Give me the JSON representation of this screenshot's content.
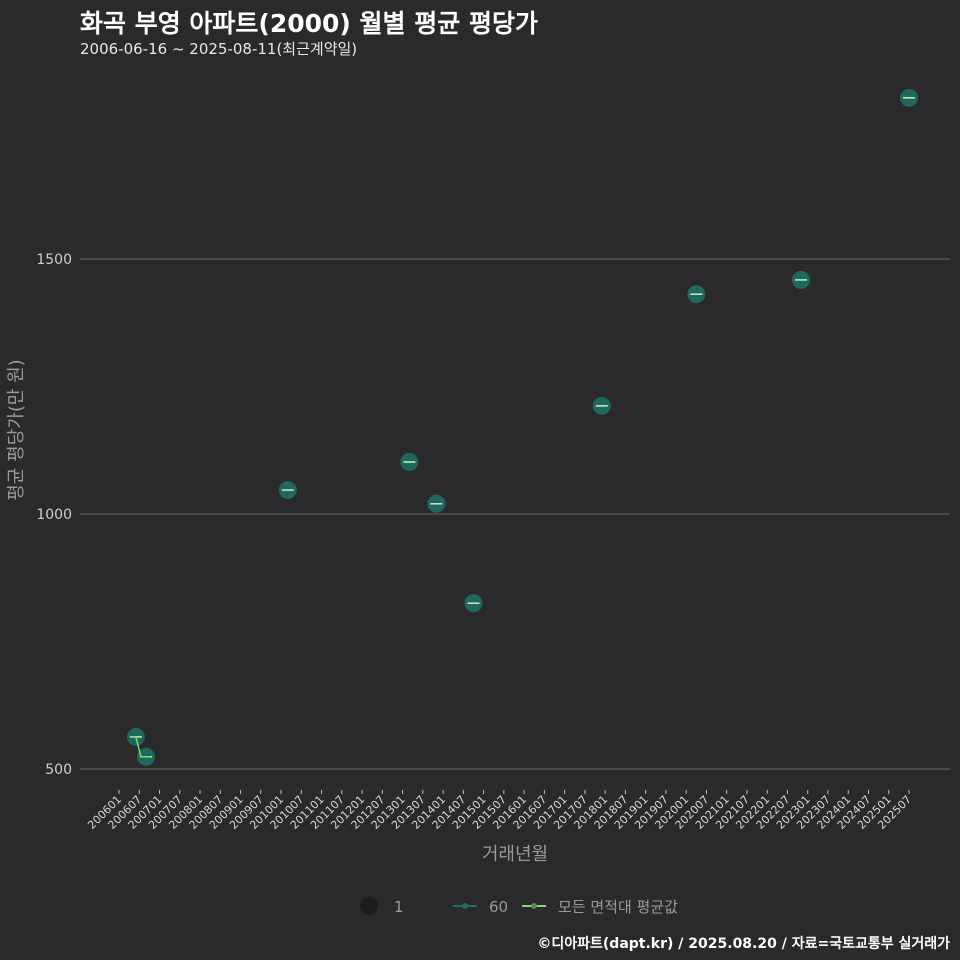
{
  "chart_data": {
    "type": "scatter",
    "title": "화곡 부영 아파트(2000) 월별 평균 평당가",
    "subtitle": "2006-06-16 ~ 2025-08-11(최근계약일)",
    "xlabel": "거래년월",
    "ylabel": "평균 평당가(만 원)",
    "ylim": [
      430,
      1870
    ],
    "yticks": [
      500,
      1000,
      1500
    ],
    "xticks": [
      "200601",
      "200607",
      "200701",
      "200707",
      "200801",
      "200807",
      "200901",
      "200907",
      "201001",
      "201007",
      "201101",
      "201107",
      "201201",
      "201207",
      "201301",
      "201307",
      "201401",
      "201407",
      "201501",
      "201507",
      "201601",
      "201607",
      "201701",
      "201707",
      "201801",
      "201807",
      "201901",
      "201907",
      "202001",
      "202007",
      "202101",
      "202107",
      "202201",
      "202207",
      "202301",
      "202307",
      "202401",
      "202407",
      "202501",
      "202507"
    ],
    "series": [
      {
        "name": "60",
        "color": "#1f6e64",
        "points": [
          {
            "x": "200606",
            "y": 563
          },
          {
            "x": "200609",
            "y": 524
          },
          {
            "x": "201003",
            "y": 1047
          },
          {
            "x": "201303",
            "y": 1102
          },
          {
            "x": "201311",
            "y": 1020
          },
          {
            "x": "201410",
            "y": 825
          },
          {
            "x": "201712",
            "y": 1212
          },
          {
            "x": "202004",
            "y": 1431
          },
          {
            "x": "202211",
            "y": 1459
          },
          {
            "x": "202507",
            "y": 1816
          }
        ]
      },
      {
        "name": "모든 면적대 평균값",
        "color": "#7ddc6a",
        "points": [
          {
            "x": "200606",
            "y": 563
          },
          {
            "x": "200609",
            "y": 524
          }
        ]
      }
    ],
    "legend": {
      "size_label": "1",
      "area_label": "60",
      "mean_label": "모든 면적대 평균값",
      "placement": "bottom"
    },
    "grid": true
  },
  "footer": "©디아파트(dapt.kr) / 2025.08.20 / 자료=국토교통부 실거래가"
}
